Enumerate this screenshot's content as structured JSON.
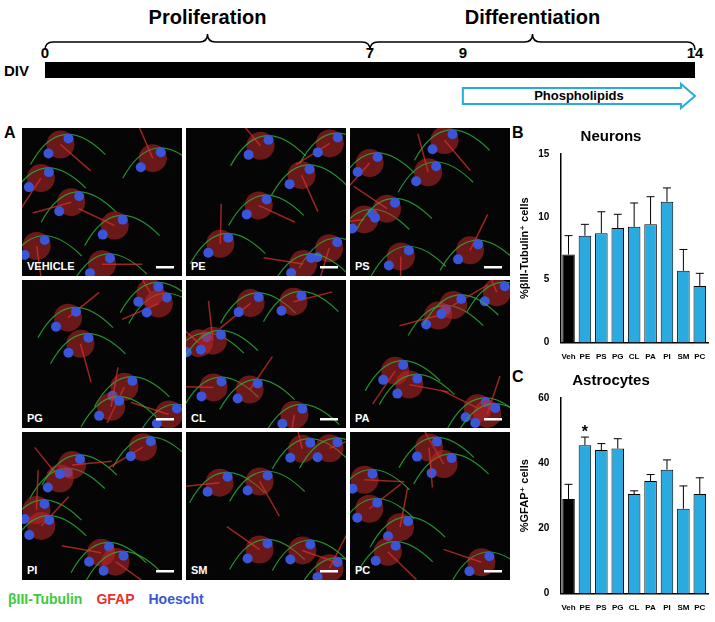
{
  "timeline": {
    "axis_label": "DIV",
    "range": [
      0,
      14
    ],
    "ticks": [
      0,
      7,
      9,
      14
    ],
    "phases": [
      {
        "label": "Proliferation",
        "from": 0,
        "to": 7
      },
      {
        "label": "Differentiation",
        "from": 7,
        "to": 14
      }
    ],
    "treatment": {
      "label": "Phospholipids",
      "from": 9,
      "to": 14
    }
  },
  "panel_a": {
    "panel_label": "A",
    "images": [
      "VEHICLE",
      "PE",
      "PS",
      "PG",
      "CL",
      "PA",
      "PI",
      "SM",
      "PC"
    ],
    "stain_legend": [
      {
        "label": "βIII-Tubulin",
        "color": "#3ec93e"
      },
      {
        "label": "GFAP",
        "color": "#e8322b"
      },
      {
        "label": "Hoescht",
        "color": "#3a55d8"
      }
    ]
  },
  "chart_data": [
    {
      "type": "bar",
      "panel_label": "B",
      "title": "Neurons",
      "y_label": "%βIII-Tubulin⁺ cells",
      "categories": [
        "Veh",
        "PE",
        "PS",
        "PG",
        "CL",
        "PA",
        "PI",
        "SM",
        "PC"
      ],
      "values": [
        7.0,
        8.5,
        8.7,
        9.1,
        9.2,
        9.4,
        11.2,
        5.7,
        4.5
      ],
      "errors": [
        1.5,
        0.9,
        1.7,
        1.1,
        1.9,
        2.2,
        1.1,
        1.7,
        1.0
      ],
      "colors": [
        "#000000",
        "#29abe2",
        "#29abe2",
        "#29abe2",
        "#29abe2",
        "#29abe2",
        "#29abe2",
        "#29abe2",
        "#29abe2"
      ],
      "ylim": [
        0,
        15
      ],
      "yticks": [
        0,
        5,
        10,
        15
      ],
      "grid": false
    },
    {
      "type": "bar",
      "panel_label": "C",
      "title": "Astrocytes",
      "y_label": "%GFAP⁺ cells",
      "categories": [
        "Veh",
        "PE",
        "PS",
        "PG",
        "CL",
        "PA",
        "PI",
        "SM",
        "PC"
      ],
      "values": [
        29,
        45.5,
        44,
        44.5,
        30.5,
        34.5,
        38,
        26,
        30.5
      ],
      "errors": [
        4.5,
        2.5,
        2,
        3,
        1,
        2,
        3,
        7,
        5
      ],
      "colors": [
        "#000000",
        "#29abe2",
        "#29abe2",
        "#29abe2",
        "#29abe2",
        "#29abe2",
        "#29abe2",
        "#29abe2",
        "#29abe2"
      ],
      "ylim": [
        0,
        60
      ],
      "yticks": [
        0,
        20,
        40,
        60
      ],
      "grid": false,
      "annotations": [
        {
          "text": "*",
          "category": "PE"
        }
      ]
    }
  ]
}
